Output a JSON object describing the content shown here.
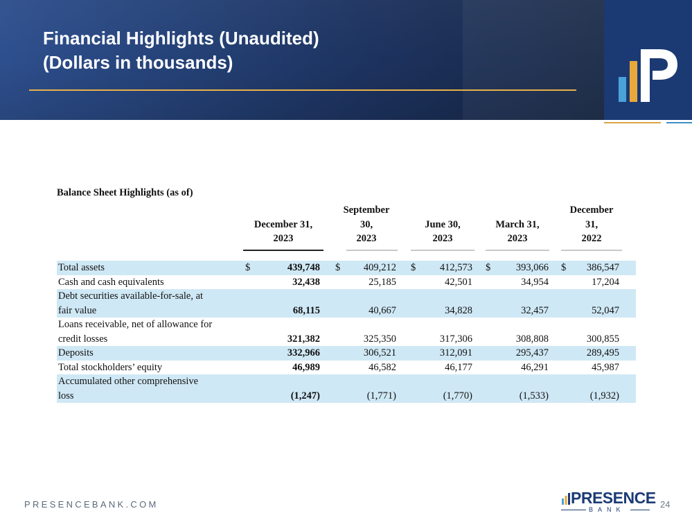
{
  "header": {
    "title_line1": "Financial Highlights (Unaudited)",
    "title_line2": "(Dollars in thousands)"
  },
  "colors": {
    "header_blue": "#233f73",
    "logo_blue": "#1b3a74",
    "gold_accent": "#e8b04a",
    "light_blue_accent": "#3c8fc5",
    "row_shading": "#cfe8f5"
  },
  "table": {
    "title": "Balance Sheet Highlights (as of)",
    "columns": [
      {
        "line1": "",
        "line2": "December 31,",
        "line3": "2023"
      },
      {
        "line1": "September",
        "line2": "30,",
        "line3": "2023"
      },
      {
        "line1": "",
        "line2": "June 30,",
        "line3": "2023"
      },
      {
        "line1": "",
        "line2": "March 31,",
        "line3": "2023"
      },
      {
        "line1": "December",
        "line2": "31,",
        "line3": "2022"
      }
    ],
    "currency_symbol": "$",
    "rows": [
      {
        "label1": "Total assets",
        "label2": "",
        "values": [
          "439,748",
          "409,212",
          "412,573",
          "393,066",
          "386,547"
        ],
        "shaded": true,
        "dollar": true
      },
      {
        "label1": "Cash and cash equivalents",
        "label2": "",
        "values": [
          "32,438",
          "25,185",
          "42,501",
          "34,954",
          "17,204"
        ],
        "shaded": false,
        "dollar": false
      },
      {
        "label1": "Debt securities available-for-sale, at",
        "label2": "fair value",
        "values": [
          "68,115",
          "40,667",
          "34,828",
          "32,457",
          "52,047"
        ],
        "shaded": true,
        "dollar": false
      },
      {
        "label1": "Loans receivable, net of allowance for",
        "label2": "credit losses",
        "values": [
          "321,382",
          "325,350",
          "317,306",
          "308,808",
          "300,855"
        ],
        "shaded": false,
        "dollar": false
      },
      {
        "label1": "Deposits",
        "label2": "",
        "values": [
          "332,966",
          "306,521",
          "312,091",
          "295,437",
          "289,495"
        ],
        "shaded": true,
        "dollar": false
      },
      {
        "label1": "Total stockholders’ equity",
        "label2": "",
        "values": [
          "46,989",
          "46,582",
          "46,177",
          "46,291",
          "45,987"
        ],
        "shaded": false,
        "dollar": false
      },
      {
        "label1": "Accumulated other comprehensive",
        "label2": "loss",
        "values": [
          "(1,247)",
          "(1,771)",
          "(1,770)",
          "(1,533)",
          "(1,932)"
        ],
        "shaded": true,
        "dollar": false
      }
    ]
  },
  "footer": {
    "url": "PRESENCEBANK.COM",
    "page_number": "24",
    "brand_name": "PRESENCE",
    "brand_sub": "BANK"
  }
}
